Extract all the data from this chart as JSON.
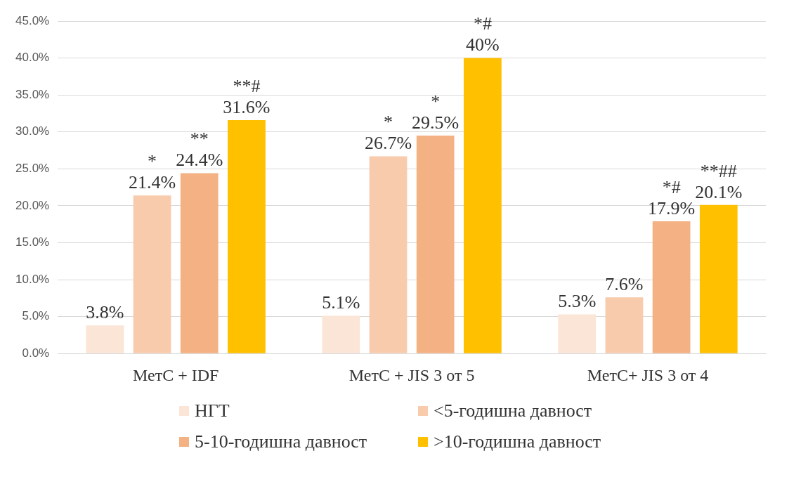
{
  "chart_data": {
    "type": "bar",
    "categories": [
      "МетС + IDF",
      "МетС + JIS 3 от 5",
      "МетС+ JIS 3 от 4"
    ],
    "series": [
      {
        "name": "НГТ",
        "color": "#fbe5d6",
        "values": [
          3.8,
          5.1,
          5.3
        ],
        "value_labels": [
          "3.8%",
          "5.1%",
          "5.3%"
        ]
      },
      {
        "name": "<5-годишна давност",
        "color": "#f8cbad",
        "values": [
          21.4,
          26.7,
          7.6
        ],
        "value_labels": [
          "21.4%",
          "26.7%",
          "7.6%"
        ]
      },
      {
        "name": "5-10-годишна давност",
        "color": "#f4b183",
        "values": [
          24.4,
          29.5,
          17.9
        ],
        "value_labels": [
          "24.4%",
          "29.5%",
          "17.9%"
        ]
      },
      {
        "name": ">10-годишна давност",
        "color": "#ffc000",
        "values": [
          31.6,
          40,
          20.1
        ],
        "value_labels": [
          "31.6%",
          "40%",
          "20.1%"
        ]
      }
    ],
    "ylim": [
      0,
      45
    ],
    "yticks": [
      {
        "value": 0,
        "label": "0.0%"
      },
      {
        "value": 5,
        "label": "5.0%"
      },
      {
        "value": 10,
        "label": "10.0%"
      },
      {
        "value": 15,
        "label": "15.0%"
      },
      {
        "value": 20,
        "label": "20.0%"
      },
      {
        "value": 25,
        "label": "25.0%"
      },
      {
        "value": 30,
        "label": "30.0%"
      },
      {
        "value": 35,
        "label": "35.0%"
      },
      {
        "value": 40,
        "label": "40.0%"
      },
      {
        "value": 45,
        "label": "45.0%"
      }
    ],
    "grid": "y",
    "legend": "bottom",
    "annotations": [
      "*",
      "**",
      "**#",
      "*",
      "*",
      "*#",
      "*#",
      "**##"
    ]
  }
}
